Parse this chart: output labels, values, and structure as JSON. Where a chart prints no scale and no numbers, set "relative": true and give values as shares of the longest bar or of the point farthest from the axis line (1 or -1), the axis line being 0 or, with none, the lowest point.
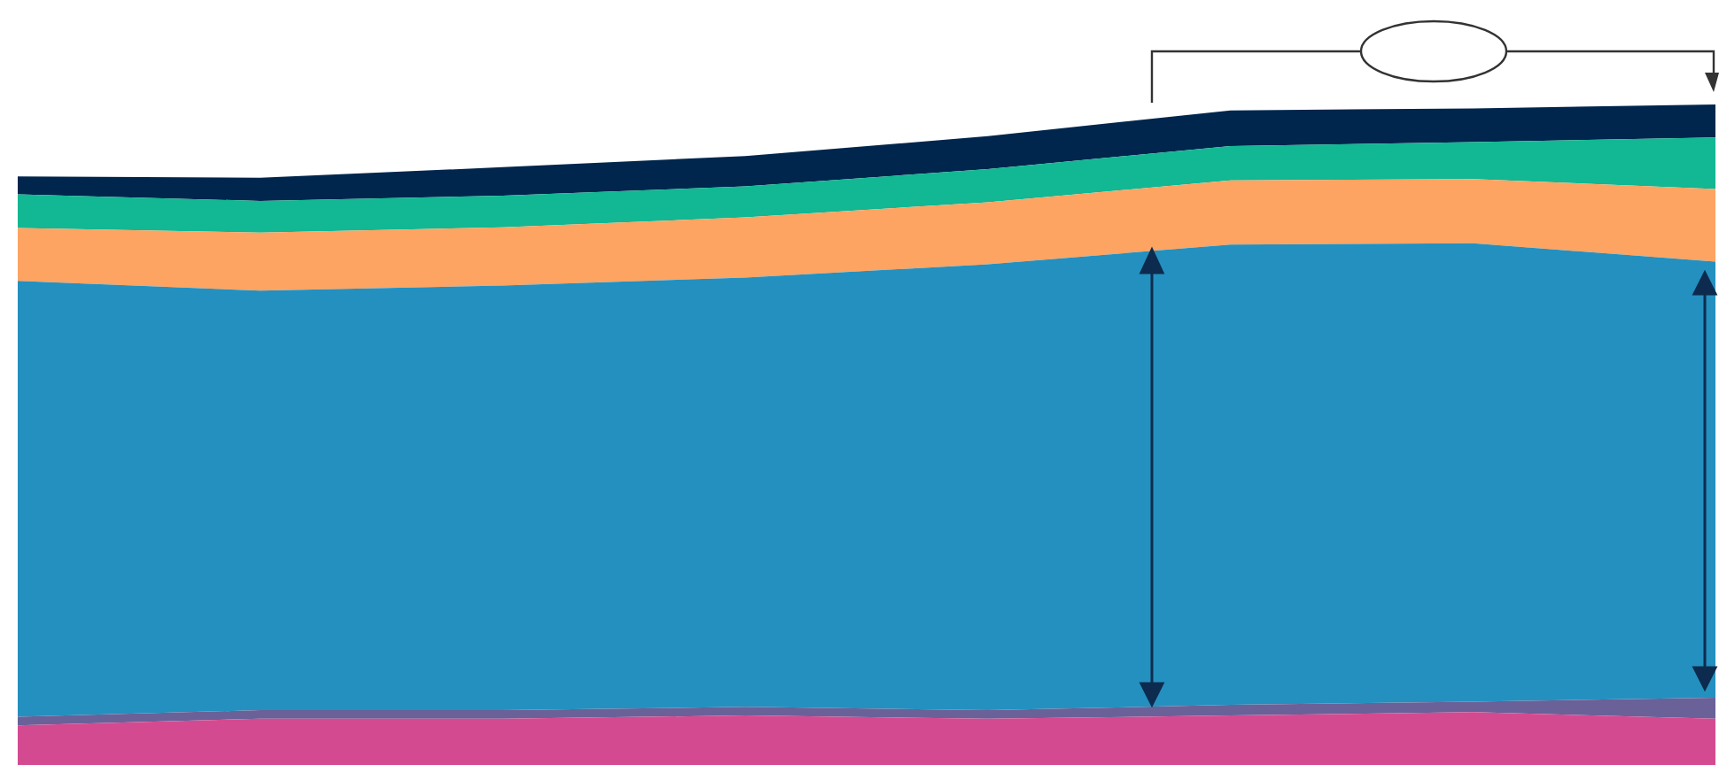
{
  "chart_data": {
    "type": "area",
    "stacked": true,
    "relative": true,
    "categories": [
      null,
      null,
      null,
      null,
      null,
      null,
      null,
      null
    ],
    "series": [
      {
        "color": "#d44a91",
        "values": [
          0.06,
          0.07,
          0.07,
          0.075,
          0.07,
          0.075,
          0.08,
          0.07
        ]
      },
      {
        "color": "#6a6199",
        "values": [
          0.013,
          0.013,
          0.013,
          0.013,
          0.013,
          0.016,
          0.016,
          0.032
        ]
      },
      {
        "color": "#2490bf",
        "values": [
          0.66,
          0.635,
          0.643,
          0.65,
          0.675,
          0.697,
          0.694,
          0.66
        ]
      },
      {
        "color": "#fda462",
        "values": [
          0.08,
          0.088,
          0.088,
          0.091,
          0.094,
          0.097,
          0.097,
          0.11
        ]
      },
      {
        "color": "#12b793",
        "values": [
          0.051,
          0.048,
          0.048,
          0.047,
          0.05,
          0.052,
          0.056,
          0.078
        ]
      },
      {
        "color": "#00264d",
        "values": [
          0.027,
          0.035,
          0.043,
          0.046,
          0.05,
          0.054,
          0.051,
          0.05
        ]
      }
    ]
  }
}
